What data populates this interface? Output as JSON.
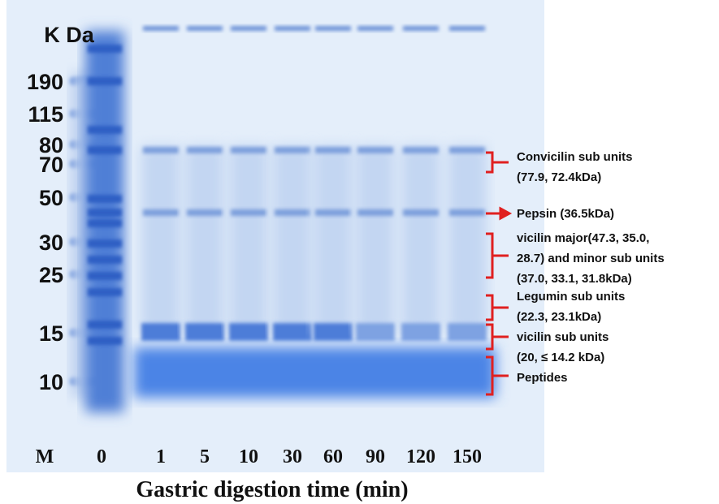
{
  "figure": {
    "unit_label": "K Da",
    "markers": [
      190,
      115,
      80,
      70,
      50,
      30,
      25,
      15,
      10
    ],
    "lane_labels": [
      "M",
      "0",
      "1",
      "5",
      "10",
      "30",
      "60",
      "90",
      "120",
      "150"
    ],
    "x_title": "Gastric digestion time (min)",
    "annotations": [
      {
        "lines": [
          "Convicilin sub units",
          "(77.9, 72.4kDa)"
        ]
      },
      {
        "lines": [
          "Pepsin (36.5kDa)"
        ]
      },
      {
        "lines": [
          "vicilin major(47.3, 35.0,",
          "28.7) and minor sub units",
          "(37.0, 33.1, 31.8kDa)"
        ]
      },
      {
        "lines": [
          "Legumin sub units",
          "(22.3, 23.1kDa)"
        ]
      },
      {
        "lines": [
          "vicilin sub units",
          "(20, ≤ 14.2 kDa)"
        ]
      },
      {
        "lines": [
          "Peptides"
        ]
      }
    ]
  }
}
